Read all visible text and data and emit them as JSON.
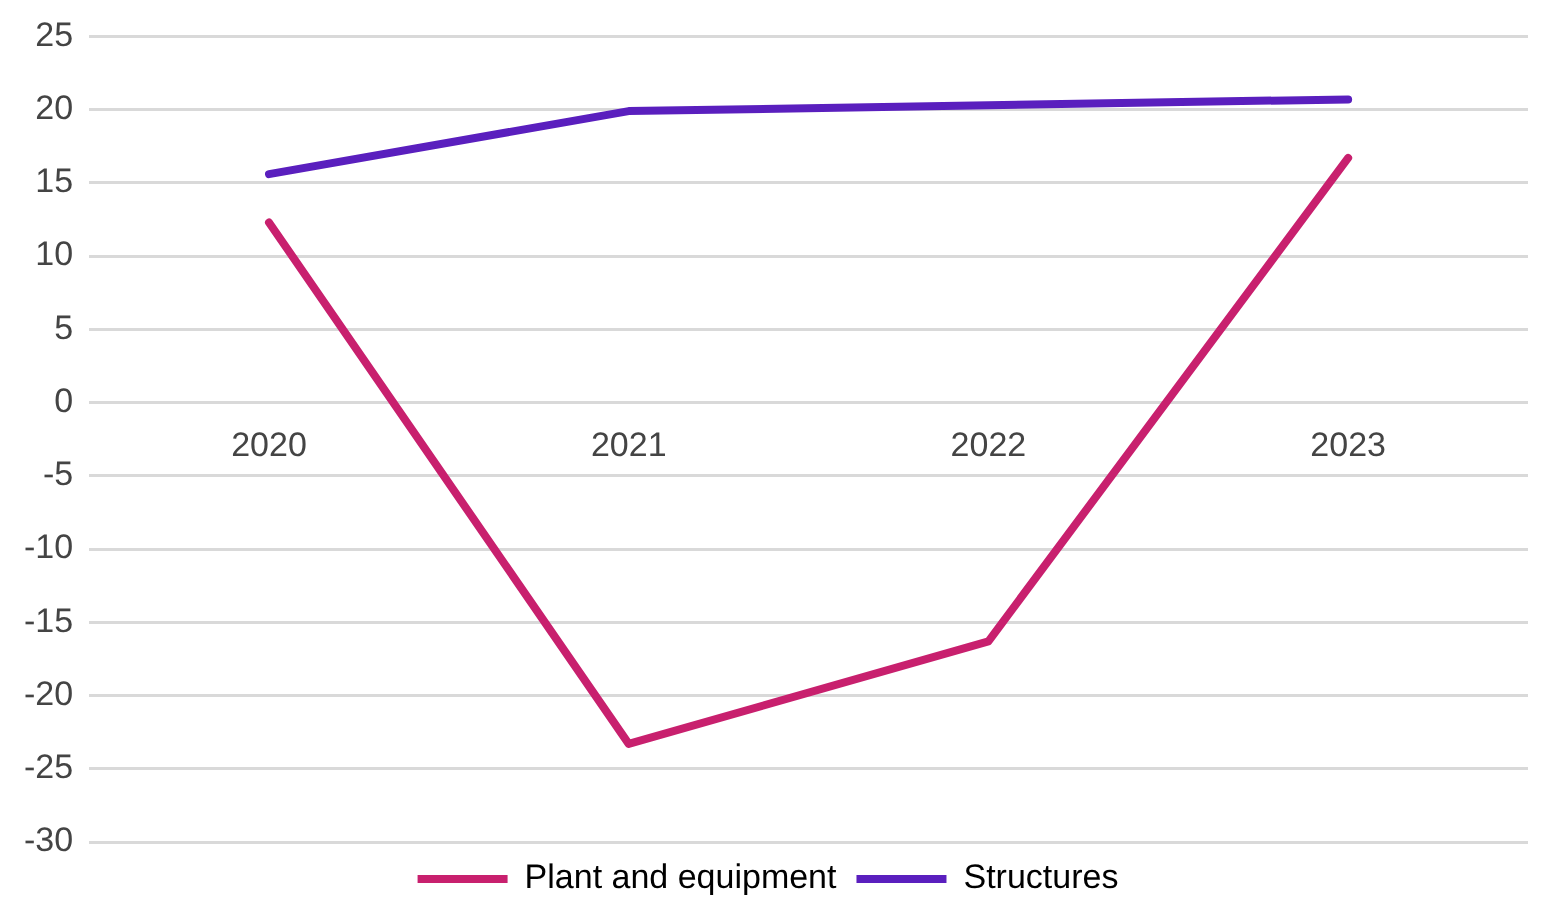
{
  "chart_data": {
    "type": "line",
    "categories": [
      "2020",
      "2021",
      "2022",
      "2023"
    ],
    "series": [
      {
        "name": "Plant and equipment",
        "color": "#c8206e",
        "values": [
          12.3,
          -23.3,
          -16.3,
          16.7
        ]
      },
      {
        "name": "Structures",
        "color": "#5a1fbe",
        "values": [
          15.6,
          19.9,
          20.3,
          20.7
        ]
      }
    ],
    "ylim": [
      -30,
      25
    ],
    "yticks": [
      -30,
      -25,
      -20,
      -15,
      -10,
      -5,
      0,
      5,
      10,
      15,
      20,
      25
    ],
    "grid": "y",
    "legend": "bottom",
    "marker": "none",
    "line_style": "solid"
  }
}
